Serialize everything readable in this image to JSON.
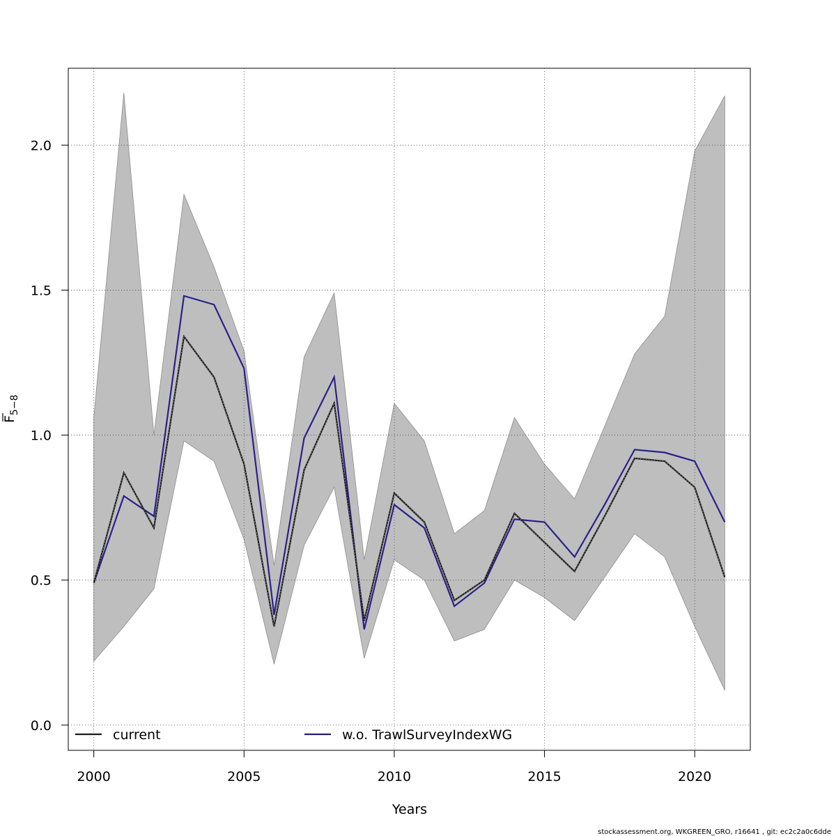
{
  "chart_data": {
    "type": "line",
    "title": "",
    "xlabel": "Years",
    "ylabel_main": "F",
    "ylabel_sub": "5−8",
    "xlim": [
      1999.15,
      2021.85
    ],
    "ylim": [
      -0.087,
      2.265
    ],
    "x_ticks": [
      2000,
      2005,
      2010,
      2015,
      2020
    ],
    "y_ticks": [
      0.0,
      0.5,
      1.0,
      1.5,
      2.0
    ],
    "x_tick_labels": [
      "2000",
      "2005",
      "2010",
      "2015",
      "2020"
    ],
    "y_tick_labels": [
      "0.0",
      "0.5",
      "1.0",
      "1.5",
      "2.0"
    ],
    "grid": true,
    "legend_position": "bottom",
    "x": [
      2000,
      2001,
      2002,
      2003,
      2004,
      2005,
      2006,
      2007,
      2008,
      2009,
      2010,
      2011,
      2012,
      2013,
      2014,
      2015,
      2016,
      2017,
      2018,
      2019,
      2020,
      2021
    ],
    "band": {
      "color": "#bebebe",
      "lower": [
        0.22,
        0.34,
        0.47,
        0.98,
        0.91,
        0.64,
        0.21,
        0.62,
        0.82,
        0.23,
        0.57,
        0.5,
        0.29,
        0.33,
        0.5,
        0.44,
        0.36,
        0.51,
        0.66,
        0.58,
        0.34,
        0.12
      ],
      "upper": [
        1.06,
        2.18,
        1.0,
        1.83,
        1.58,
        1.29,
        0.55,
        1.27,
        1.49,
        0.57,
        1.11,
        0.98,
        0.66,
        0.74,
        1.06,
        0.9,
        0.78,
        1.03,
        1.28,
        1.41,
        1.98,
        2.17
      ]
    },
    "series": [
      {
        "name": "current",
        "color": "#1a1a1a",
        "style": "solid-with-dotted-overlay",
        "values": [
          0.49,
          0.87,
          0.68,
          1.34,
          1.2,
          0.9,
          0.34,
          0.88,
          1.11,
          0.36,
          0.8,
          0.7,
          0.43,
          0.5,
          0.73,
          0.63,
          0.53,
          0.72,
          0.92,
          0.91,
          0.82,
          0.51
        ]
      },
      {
        "name": "w.o. TrawlSurveyIndexWG",
        "color": "#2b1f8a",
        "style": "solid",
        "values": [
          0.49,
          0.79,
          0.72,
          1.48,
          1.45,
          1.23,
          0.38,
          0.99,
          1.2,
          0.33,
          0.76,
          0.68,
          0.41,
          0.49,
          0.71,
          0.7,
          0.58,
          0.76,
          0.95,
          0.94,
          0.91,
          0.7
        ]
      }
    ]
  },
  "footer_text": "stockassessment.org, WKGREEN_GRO, r16641 , git: ec2c2a0c6dde"
}
